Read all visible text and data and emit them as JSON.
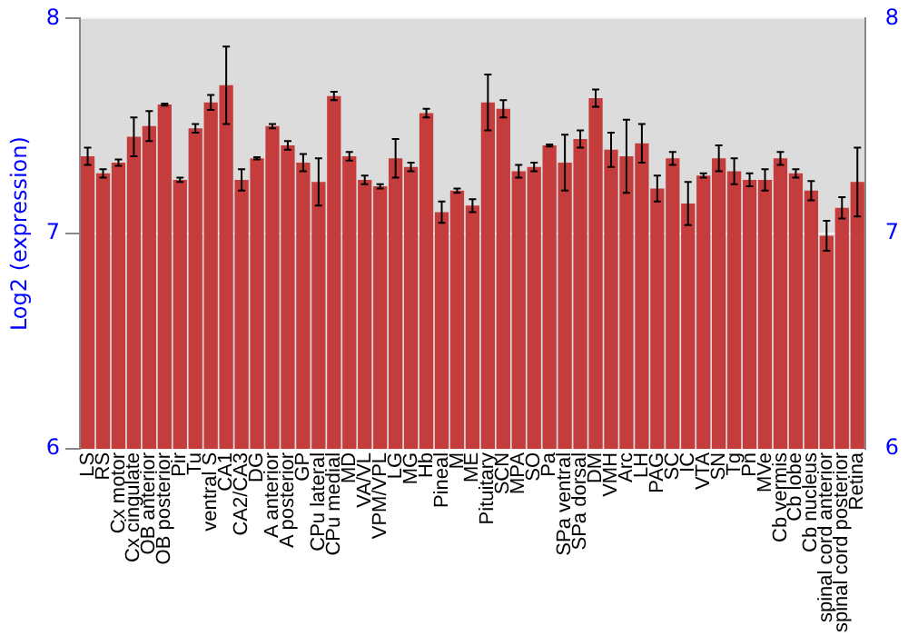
{
  "chart_data": {
    "type": "bar",
    "ylabel": "Log2 (expression)",
    "categories": [
      "LS",
      "RS",
      "Cx motor",
      "Cx cingulate",
      "OB anterior",
      "OB posterior",
      "Pir",
      "Tu",
      "ventral S",
      "CA1",
      "CA2/CA3",
      "DG",
      "A anterior",
      "A posterior",
      "GP",
      "CPu lateral",
      "CPu medial",
      "MD",
      "VA/VL",
      "VPM/VPL",
      "LG",
      "MG",
      "Hb",
      "Pineal",
      "M",
      "ME",
      "Pituitary",
      "SCN",
      "MPA",
      "SO",
      "Pa",
      "SPa ventral",
      "SPa dorsal",
      "DM",
      "VMH",
      "Arc",
      "LH",
      "PAG",
      "SC",
      "IC",
      "VTA",
      "SN",
      "Tg",
      "Pn",
      "MVe",
      "Cb vermis",
      "Cb lobe",
      "Cb nucleus",
      "spinal cord anterior",
      "spinal cord posterior",
      "Retina"
    ],
    "series": [
      {
        "color": "#c43c3c",
        "values": [
          7.36,
          7.28,
          7.33,
          7.45,
          7.5,
          7.6,
          7.25,
          7.49,
          7.61,
          7.69,
          7.25,
          7.35,
          7.5,
          7.41,
          7.33,
          7.24,
          7.64,
          7.36,
          7.25,
          7.22,
          7.35,
          7.31,
          7.56,
          7.1,
          7.2,
          7.13,
          7.61,
          7.58,
          7.29,
          7.31,
          7.41,
          7.33,
          7.44,
          7.63,
          7.39,
          7.36,
          7.42,
          7.21,
          7.35,
          7.14,
          7.27,
          7.35,
          7.29,
          7.25,
          7.25,
          7.35,
          7.28,
          7.2,
          6.99,
          7.12,
          7.24
        ],
        "errors": [
          0.04,
          0.02,
          0.015,
          0.09,
          0.07,
          0.005,
          0.01,
          0.02,
          0.035,
          0.18,
          0.05,
          0.005,
          0.01,
          0.02,
          0.04,
          0.11,
          0.02,
          0.02,
          0.02,
          0.01,
          0.09,
          0.02,
          0.02,
          0.05,
          0.01,
          0.03,
          0.13,
          0.04,
          0.03,
          0.02,
          0.005,
          0.13,
          0.04,
          0.04,
          0.08,
          0.17,
          0.09,
          0.06,
          0.03,
          0.1,
          0.01,
          0.06,
          0.06,
          0.03,
          0.05,
          0.03,
          0.02,
          0.045,
          0.07,
          0.05,
          0.16
        ]
      }
    ],
    "ylim": [
      6,
      8
    ],
    "yticks": [
      6,
      7,
      8
    ],
    "y2lim": [
      6,
      8
    ],
    "y2ticks": [
      6,
      7,
      8
    ],
    "grid": "y",
    "legend": false
  }
}
